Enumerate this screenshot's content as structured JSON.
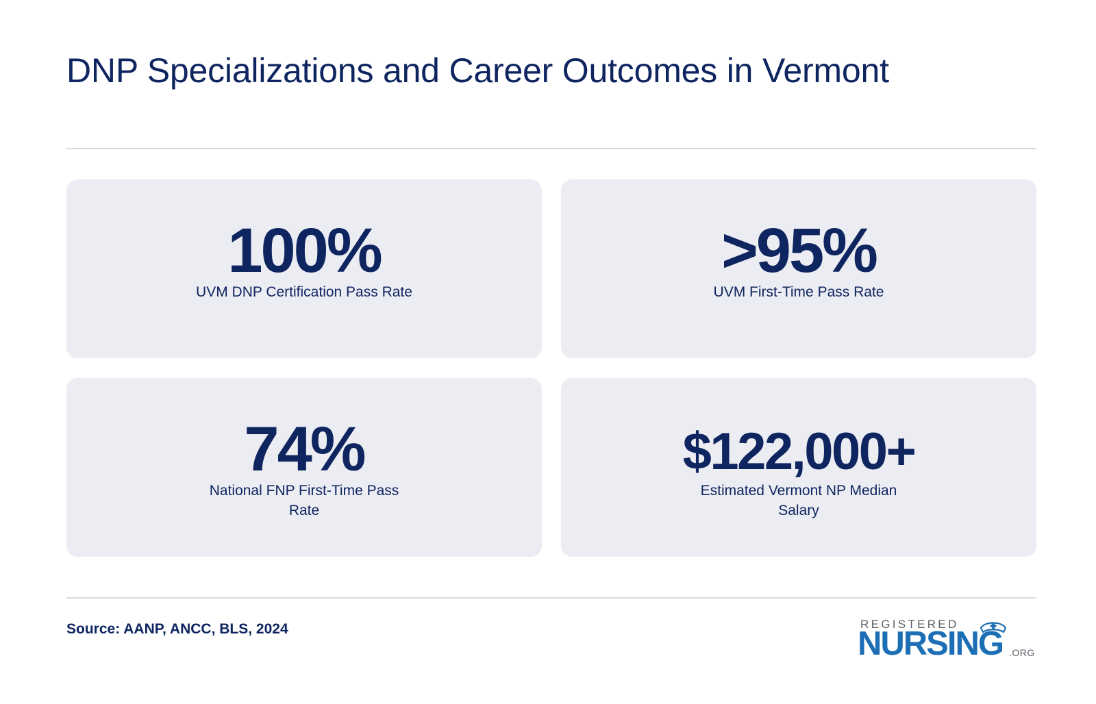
{
  "title": "DNP Specializations and Career Outcomes in Vermont",
  "stats": [
    {
      "value": "100%",
      "label": "UVM DNP Certification Pass Rate"
    },
    {
      "value": ">95%",
      "label": "UVM First-Time Pass Rate"
    },
    {
      "value": "74%",
      "label": "National FNP First-Time Pass Rate"
    },
    {
      "value": "$122,000+",
      "label": "Estimated Vermont NP Median Salary"
    }
  ],
  "source": "Source: AANP, ANCC, BLS, 2024",
  "logo": {
    "top_text": "REGISTERED",
    "main_text": "NURSING",
    "suffix": ".ORG",
    "icon": "nurse-cap-icon"
  },
  "colors": {
    "primary_navy": "#0f2560",
    "card_background": "#ecedf3",
    "logo_blue": "#1d6fb5",
    "logo_gray": "#5b5f66",
    "divider": "#d8dade"
  }
}
